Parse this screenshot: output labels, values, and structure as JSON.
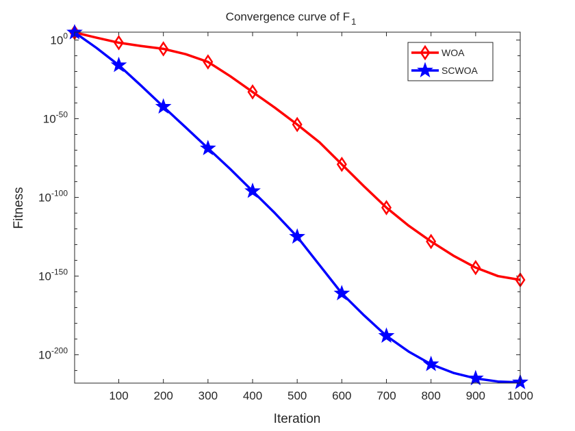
{
  "chart_data": {
    "type": "line",
    "title": "Convergence curve of F",
    "title_subscript": "1",
    "xlabel": "Iteration",
    "ylabel": "Fitness",
    "yscale": "log",
    "xlim": [
      1,
      1000
    ],
    "ylim_log10": [
      -218,
      5
    ],
    "x_ticks": [
      100,
      200,
      300,
      400,
      500,
      600,
      700,
      800,
      900,
      1000
    ],
    "x_tick_labels": [
      "100",
      "200",
      "300",
      "400",
      "500",
      "600",
      "700",
      "800",
      "900",
      "1000"
    ],
    "y_ticks_log10": [
      0,
      -50,
      -100,
      -150,
      -200
    ],
    "y_tick_base": "10",
    "y_tick_exponents": [
      "0",
      "-50",
      "-100",
      "-150",
      "-200"
    ],
    "legend_position": "top-right",
    "x": [
      1,
      50,
      100,
      150,
      200,
      250,
      300,
      350,
      400,
      450,
      500,
      550,
      600,
      650,
      700,
      750,
      800,
      850,
      900,
      950,
      1000
    ],
    "series": [
      {
        "name": "WOA",
        "color": "#ff0000",
        "marker": "diamond",
        "log10_values": [
          4.8,
          1.5,
          -1.7,
          -3.8,
          -5.6,
          -9,
          -13.9,
          -23,
          -33,
          -43,
          -53.7,
          -65,
          -79,
          -93,
          -106.5,
          -118,
          -128,
          -137,
          -144.6,
          -150,
          -152.4
        ]
      },
      {
        "name": "SCWOA",
        "color": "#0000ff",
        "marker": "star",
        "log10_values": [
          4.8,
          -5,
          -16,
          -29,
          -42.4,
          -55.5,
          -68.8,
          -82,
          -96,
          -110,
          -125,
          -143,
          -161,
          -175,
          -188,
          -198,
          -206,
          -211.5,
          -215,
          -217,
          -217.5
        ]
      }
    ]
  }
}
